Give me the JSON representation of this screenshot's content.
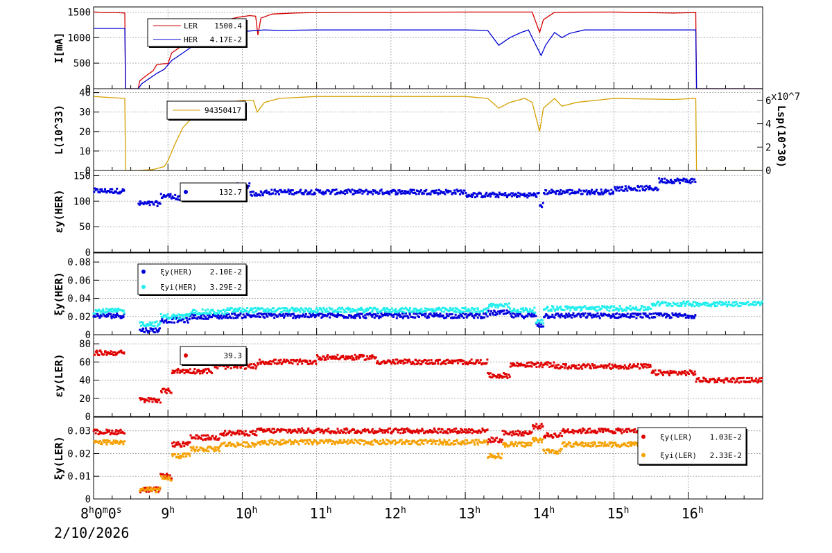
{
  "chart_data": [
    {
      "type": "line",
      "ylabel": "I[mA]",
      "ylim": [
        0,
        1600
      ],
      "yticks": [
        "0",
        "500",
        "1000",
        "1500"
      ],
      "yticks_values": [
        0,
        500,
        1000,
        1500
      ],
      "series": [
        {
          "name": "LER",
          "legend_value": "1500.4",
          "color": "#d40000",
          "points": [
            [
              8.0,
              1500
            ],
            [
              8.15,
              1490
            ],
            [
              8.3,
              1490
            ],
            [
              8.42,
              1480
            ],
            [
              8.43,
              0
            ],
            [
              8.6,
              0
            ],
            [
              8.62,
              150
            ],
            [
              8.7,
              250
            ],
            [
              8.8,
              350
            ],
            [
              8.85,
              470
            ],
            [
              8.95,
              490
            ],
            [
              9.0,
              490
            ],
            [
              9.05,
              700
            ],
            [
              9.15,
              800
            ],
            [
              9.3,
              1000
            ],
            [
              9.45,
              1100
            ],
            [
              9.6,
              1200
            ],
            [
              9.8,
              1350
            ],
            [
              9.95,
              1400
            ],
            [
              10.1,
              1430
            ],
            [
              10.18,
              1420
            ],
            [
              10.21,
              1050
            ],
            [
              10.25,
              1380
            ],
            [
              10.4,
              1460
            ],
            [
              10.7,
              1480
            ],
            [
              11.0,
              1490
            ],
            [
              12.0,
              1495
            ],
            [
              13.0,
              1500
            ],
            [
              13.5,
              1500
            ],
            [
              13.9,
              1500
            ],
            [
              14.0,
              1100
            ],
            [
              14.05,
              1350
            ],
            [
              14.2,
              1495
            ],
            [
              15.0,
              1500
            ],
            [
              15.8,
              1480
            ],
            [
              16.1,
              1490
            ],
            [
              16.11,
              0
            ],
            [
              17.0,
              0
            ]
          ]
        },
        {
          "name": "HER",
          "legend_value": "4.17E-2",
          "color": "#0000d4",
          "points": [
            [
              8.0,
              1180
            ],
            [
              8.3,
              1180
            ],
            [
              8.42,
              1180
            ],
            [
              8.43,
              0
            ],
            [
              8.6,
              0
            ],
            [
              8.65,
              100
            ],
            [
              8.75,
              200
            ],
            [
              8.85,
              300
            ],
            [
              8.95,
              380
            ],
            [
              9.05,
              550
            ],
            [
              9.15,
              650
            ],
            [
              9.3,
              800
            ],
            [
              9.5,
              950
            ],
            [
              9.7,
              1050
            ],
            [
              9.9,
              1100
            ],
            [
              10.1,
              1130
            ],
            [
              10.3,
              1150
            ],
            [
              10.5,
              1140
            ],
            [
              11.0,
              1150
            ],
            [
              12.0,
              1150
            ],
            [
              13.0,
              1150
            ],
            [
              13.3,
              1140
            ],
            [
              13.45,
              850
            ],
            [
              13.6,
              1000
            ],
            [
              13.75,
              1100
            ],
            [
              13.85,
              1150
            ],
            [
              13.95,
              850
            ],
            [
              14.02,
              650
            ],
            [
              14.08,
              850
            ],
            [
              14.2,
              1100
            ],
            [
              14.3,
              1000
            ],
            [
              14.4,
              1080
            ],
            [
              14.6,
              1150
            ],
            [
              15.0,
              1150
            ],
            [
              15.8,
              1150
            ],
            [
              16.1,
              1150
            ],
            [
              16.11,
              0
            ],
            [
              17.0,
              0
            ]
          ]
        }
      ]
    },
    {
      "type": "line",
      "ylabel": "L(10^33)",
      "ylim": [
        0,
        42
      ],
      "yticks": [
        "0",
        "10",
        "20",
        "30",
        "40"
      ],
      "yticks_values": [
        0,
        10,
        20,
        30,
        40
      ],
      "y2label": "Lsp(10^30)",
      "y2_exponent": "x10^7",
      "y2ticks": [
        "0",
        "2",
        "4",
        "6"
      ],
      "y2ticks_values": [
        0,
        2,
        4,
        6
      ],
      "y2lim": [
        0,
        7
      ],
      "series": [
        {
          "name": "",
          "legend_value": "94350417",
          "color": "#d4a000",
          "points": [
            [
              8.0,
              38
            ],
            [
              8.2,
              37.5
            ],
            [
              8.42,
              37
            ],
            [
              8.43,
              0
            ],
            [
              8.6,
              0
            ],
            [
              8.8,
              0.5
            ],
            [
              8.95,
              2
            ],
            [
              9.0,
              5
            ],
            [
              9.1,
              14
            ],
            [
              9.2,
              22
            ],
            [
              9.3,
              26
            ],
            [
              9.4,
              29
            ],
            [
              9.6,
              32
            ],
            [
              9.8,
              35
            ],
            [
              10.0,
              36
            ],
            [
              10.15,
              36
            ],
            [
              10.2,
              30
            ],
            [
              10.3,
              35
            ],
            [
              10.5,
              37
            ],
            [
              11.0,
              38
            ],
            [
              12.0,
              38
            ],
            [
              13.0,
              38
            ],
            [
              13.3,
              37
            ],
            [
              13.45,
              32
            ],
            [
              13.6,
              35
            ],
            [
              13.8,
              37
            ],
            [
              13.9,
              35
            ],
            [
              14.0,
              20
            ],
            [
              14.05,
              32
            ],
            [
              14.2,
              37
            ],
            [
              14.3,
              33
            ],
            [
              14.5,
              35
            ],
            [
              15.0,
              37
            ],
            [
              15.8,
              36.5
            ],
            [
              16.1,
              37
            ],
            [
              16.11,
              0
            ],
            [
              17.0,
              0
            ]
          ]
        }
      ]
    },
    {
      "type": "scatter",
      "ylabel": "εy(HER)",
      "ylim": [
        0,
        160
      ],
      "yticks": [
        "0",
        "50",
        "100",
        "150"
      ],
      "yticks_values": [
        0,
        50,
        100,
        150
      ],
      "series": [
        {
          "name": "",
          "legend_value": "132.7",
          "color": "#0000dd",
          "segments": [
            [
              8.0,
              8.42,
              120
            ],
            [
              8.6,
              8.9,
              95
            ],
            [
              8.9,
              9.1,
              110
            ],
            [
              9.1,
              9.9,
              105
            ],
            [
              9.9,
              10.1,
              130
            ],
            [
              10.1,
              10.3,
              115
            ],
            [
              10.3,
              13.0,
              118
            ],
            [
              13.0,
              14.0,
              112
            ],
            [
              14.0,
              14.05,
              92
            ],
            [
              14.05,
              15.0,
              118
            ],
            [
              15.0,
              15.6,
              125
            ],
            [
              15.6,
              16.1,
              140
            ]
          ]
        }
      ]
    },
    {
      "type": "scatter",
      "ylabel": "ξy(HER)",
      "ylim": [
        0,
        0.09
      ],
      "yticks": [
        "0",
        "0.02",
        "0.04",
        "0.06",
        "0.08"
      ],
      "yticks_values": [
        0,
        0.02,
        0.04,
        0.06,
        0.08
      ],
      "series": [
        {
          "name": "ξy(HER)",
          "legend_value": "2.10E-2",
          "color": "#0000dd",
          "segments": [
            [
              8.0,
              8.42,
              0.021
            ],
            [
              8.62,
              8.9,
              0.005
            ],
            [
              8.9,
              9.3,
              0.016
            ],
            [
              9.3,
              9.8,
              0.02
            ],
            [
              9.8,
              13.3,
              0.021
            ],
            [
              13.3,
              13.6,
              0.024
            ],
            [
              13.6,
              13.95,
              0.021
            ],
            [
              13.95,
              14.05,
              0.011
            ],
            [
              14.05,
              16.1,
              0.021
            ]
          ]
        },
        {
          "name": "ξyi(HER)",
          "legend_value": "3.29E-2",
          "color": "#22eeee",
          "segments": [
            [
              8.0,
              8.42,
              0.026
            ],
            [
              8.62,
              8.9,
              0.012
            ],
            [
              8.9,
              9.3,
              0.02
            ],
            [
              9.3,
              9.8,
              0.025
            ],
            [
              9.8,
              13.3,
              0.027
            ],
            [
              13.3,
              13.6,
              0.032
            ],
            [
              13.6,
              13.95,
              0.027
            ],
            [
              13.95,
              14.05,
              0.014
            ],
            [
              14.05,
              15.5,
              0.029
            ],
            [
              15.5,
              17.0,
              0.034
            ]
          ]
        }
      ]
    },
    {
      "type": "scatter",
      "ylabel": "εy(LER)",
      "ylim": [
        0,
        90
      ],
      "yticks": [
        "0",
        "20",
        "40",
        "60",
        "80"
      ],
      "yticks_values": [
        0,
        20,
        40,
        60,
        80
      ],
      "series": [
        {
          "name": "",
          "legend_value": "39.3",
          "color": "#e00000",
          "segments": [
            [
              8.0,
              8.42,
              70
            ],
            [
              8.62,
              8.9,
              18
            ],
            [
              8.9,
              9.05,
              28
            ],
            [
              9.05,
              9.6,
              50
            ],
            [
              9.6,
              10.2,
              55
            ],
            [
              10.2,
              11.0,
              60
            ],
            [
              11.0,
              11.8,
              65
            ],
            [
              11.8,
              13.3,
              60
            ],
            [
              13.3,
              13.6,
              45
            ],
            [
              13.6,
              14.2,
              57
            ],
            [
              14.2,
              15.5,
              55
            ],
            [
              15.5,
              16.1,
              48
            ],
            [
              16.1,
              17.0,
              40
            ]
          ]
        }
      ]
    },
    {
      "type": "scatter",
      "ylabel": "ξy(LER)",
      "ylim": [
        0,
        0.036
      ],
      "yticks": [
        "0",
        "0.01",
        "0.02",
        "0.03"
      ],
      "yticks_values": [
        0,
        0.01,
        0.02,
        0.03
      ],
      "series": [
        {
          "name": "ξy(LER)",
          "legend_value": "1.03E-2",
          "color": "#e00000",
          "segments": [
            [
              8.0,
              8.42,
              0.0295
            ],
            [
              8.62,
              8.9,
              0.004
            ],
            [
              8.9,
              9.05,
              0.01
            ],
            [
              9.05,
              9.3,
              0.024
            ],
            [
              9.3,
              9.7,
              0.027
            ],
            [
              9.7,
              10.2,
              0.029
            ],
            [
              10.2,
              13.3,
              0.03
            ],
            [
              13.3,
              13.5,
              0.026
            ],
            [
              13.5,
              13.9,
              0.029
            ],
            [
              13.9,
              14.05,
              0.032
            ],
            [
              14.05,
              14.3,
              0.028
            ],
            [
              14.3,
              16.2,
              0.03
            ]
          ]
        },
        {
          "name": "ξyi(LER)",
          "legend_value": "2.33E-2",
          "color": "#f5a000",
          "segments": [
            [
              8.0,
              8.42,
              0.025
            ],
            [
              8.62,
              8.9,
              0.004
            ],
            [
              8.9,
              9.05,
              0.009
            ],
            [
              9.05,
              9.3,
              0.019
            ],
            [
              9.3,
              9.7,
              0.022
            ],
            [
              9.7,
              10.2,
              0.024
            ],
            [
              10.2,
              13.3,
              0.025
            ],
            [
              13.3,
              13.5,
              0.019
            ],
            [
              13.5,
              13.9,
              0.024
            ],
            [
              13.9,
              14.05,
              0.026
            ],
            [
              14.05,
              14.3,
              0.021
            ],
            [
              14.3,
              16.2,
              0.024
            ]
          ]
        }
      ]
    }
  ],
  "xaxis": {
    "xlim": [
      8,
      17
    ],
    "hour_ticks": [
      {
        "x": 9,
        "label": "9",
        "unit": "h"
      },
      {
        "x": 10,
        "label": "10",
        "unit": "h"
      },
      {
        "x": 11,
        "label": "11",
        "unit": "h"
      },
      {
        "x": 12,
        "label": "12",
        "unit": "h"
      },
      {
        "x": 13,
        "label": "13",
        "unit": "h"
      },
      {
        "x": 14,
        "label": "14",
        "unit": "h"
      },
      {
        "x": 15,
        "label": "15",
        "unit": "h"
      },
      {
        "x": 16,
        "label": "16",
        "unit": "h"
      }
    ],
    "start_label": {
      "h": "8",
      "hu": "h",
      "m": "0",
      "mu": "m",
      "s": "0",
      "su": "s"
    },
    "date": "2/10/2026"
  }
}
